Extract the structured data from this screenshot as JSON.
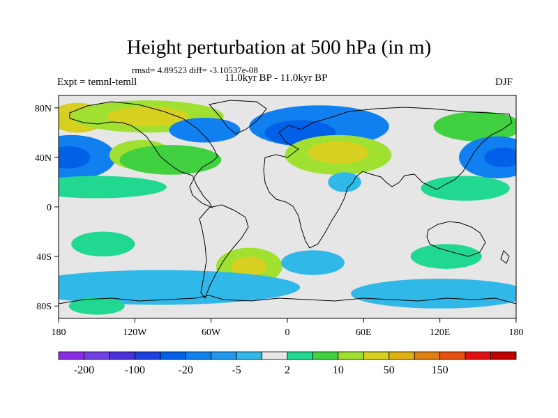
{
  "title": "Height perturbation at 500 hPa (in m)",
  "stats": "rmsd= 4.89523 diff= -3.10537e-08",
  "expt": "Expt = temnl-temll",
  "period": "11.0kyr BP - 11.0kyr BP",
  "season": "DJF",
  "map": {
    "projection": "cylindrical-equidistant",
    "lon_range": [
      -180,
      180
    ],
    "lat_range": [
      -90,
      90
    ],
    "lon_ticks": [
      {
        "value": -180,
        "label": "180"
      },
      {
        "value": -120,
        "label": "120W"
      },
      {
        "value": -60,
        "label": "60W"
      },
      {
        "value": 0,
        "label": "0"
      },
      {
        "value": 60,
        "label": "60E"
      },
      {
        "value": 120,
        "label": "120E"
      },
      {
        "value": 180,
        "label": "180"
      }
    ],
    "lat_ticks": [
      {
        "value": 80,
        "label": "80N"
      },
      {
        "value": 40,
        "label": "40N"
      },
      {
        "value": 0,
        "label": "0"
      },
      {
        "value": -40,
        "label": "40S"
      },
      {
        "value": -80,
        "label": "80S"
      }
    ],
    "neutral_color": "#e6e6e6",
    "anomalies": [
      {
        "lon": -165,
        "lat": 72,
        "rx": 22,
        "ry": 12,
        "level": 4
      },
      {
        "lon": -110,
        "lat": 73,
        "rx": 60,
        "ry": 13,
        "level": 3
      },
      {
        "lon": -110,
        "lat": 73,
        "rx": 32,
        "ry": 8,
        "level": 4
      },
      {
        "lon": -65,
        "lat": 62,
        "rx": 28,
        "ry": 10,
        "level": -3
      },
      {
        "lon": -170,
        "lat": 40,
        "rx": 35,
        "ry": 18,
        "level": -3
      },
      {
        "lon": -172,
        "lat": 40,
        "rx": 17,
        "ry": 9,
        "level": -4
      },
      {
        "lon": -115,
        "lat": 42,
        "rx": 25,
        "ry": 12,
        "level": 3
      },
      {
        "lon": -92,
        "lat": 38,
        "rx": 40,
        "ry": 12,
        "level": 2
      },
      {
        "lon": -150,
        "lat": 16,
        "rx": 55,
        "ry": 9,
        "level": 1
      },
      {
        "lon": 25,
        "lat": 65,
        "rx": 55,
        "ry": 17,
        "level": -3
      },
      {
        "lon": 10,
        "lat": 60,
        "rx": 28,
        "ry": 10,
        "level": -4
      },
      {
        "lon": 40,
        "lat": 42,
        "rx": 42,
        "ry": 16,
        "level": 3
      },
      {
        "lon": 40,
        "lat": 44,
        "rx": 24,
        "ry": 9,
        "level": 4
      },
      {
        "lon": 45,
        "lat": 20,
        "rx": 13,
        "ry": 8,
        "level": -1
      },
      {
        "lon": 150,
        "lat": 65,
        "rx": 35,
        "ry": 12,
        "level": 2
      },
      {
        "lon": 165,
        "lat": 40,
        "rx": 30,
        "ry": 17,
        "level": -3
      },
      {
        "lon": 170,
        "lat": 40,
        "rx": 15,
        "ry": 8,
        "level": -4
      },
      {
        "lon": 140,
        "lat": 15,
        "rx": 35,
        "ry": 10,
        "level": 1
      },
      {
        "lon": -145,
        "lat": -30,
        "rx": 25,
        "ry": 10,
        "level": 1
      },
      {
        "lon": -30,
        "lat": -48,
        "rx": 26,
        "ry": 15,
        "level": 3
      },
      {
        "lon": -30,
        "lat": -48,
        "rx": 14,
        "ry": 8,
        "level": 4
      },
      {
        "lon": 20,
        "lat": -45,
        "rx": 25,
        "ry": 10,
        "level": -1
      },
      {
        "lon": 125,
        "lat": -40,
        "rx": 28,
        "ry": 10,
        "level": 1
      },
      {
        "lon": -100,
        "lat": -65,
        "rx": 110,
        "ry": 14,
        "level": -1
      },
      {
        "lon": 120,
        "lat": -70,
        "rx": 70,
        "ry": 12,
        "level": -1
      },
      {
        "lon": -150,
        "lat": -80,
        "rx": 22,
        "ry": 7,
        "level": 1
      }
    ]
  },
  "colorbar": {
    "colors": [
      "#8a2be2",
      "#7040e0",
      "#4a30d8",
      "#1e40e0",
      "#0060e8",
      "#1080f0",
      "#2098ee",
      "#30b8e8",
      "#e6e6e6",
      "#20d890",
      "#40d040",
      "#a0e030",
      "#d8d020",
      "#e0b010",
      "#e08010",
      "#e85010",
      "#e01010",
      "#c00000"
    ],
    "labels": [
      {
        "after_box": 1,
        "text": "-200"
      },
      {
        "after_box": 3,
        "text": "-100"
      },
      {
        "after_box": 5,
        "text": "-20"
      },
      {
        "after_box": 7,
        "text": "-5"
      },
      {
        "after_box": 9,
        "text": "2"
      },
      {
        "after_box": 11,
        "text": "10"
      },
      {
        "after_box": 13,
        "text": "50"
      },
      {
        "after_box": 15,
        "text": "150"
      }
    ]
  }
}
